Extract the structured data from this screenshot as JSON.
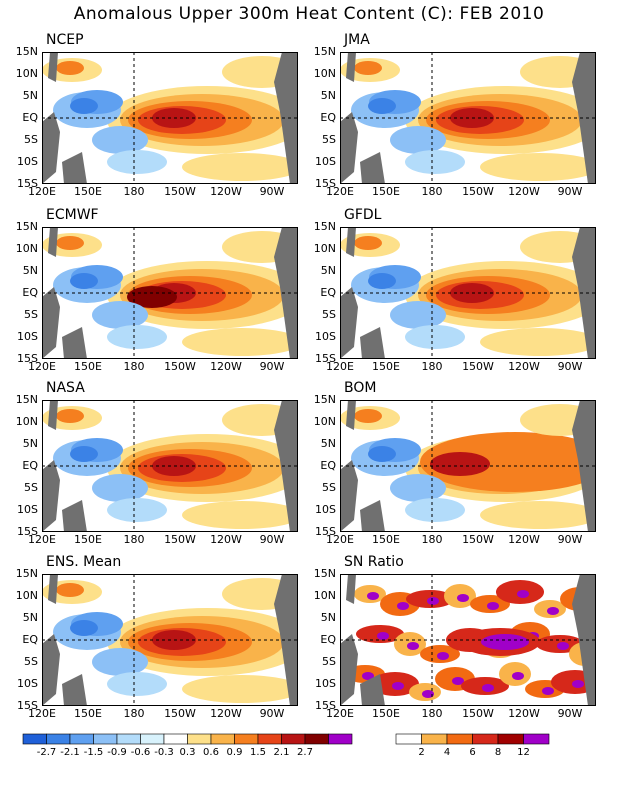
{
  "title": "Anomalous Upper 300m Heat Content (C): FEB 2010",
  "panels": [
    {
      "id": "ncep",
      "label": "NCEP"
    },
    {
      "id": "jma",
      "label": "JMA"
    },
    {
      "id": "ecmwf",
      "label": "ECMWF"
    },
    {
      "id": "gfdl",
      "label": "GFDL"
    },
    {
      "id": "nasa",
      "label": "NASA"
    },
    {
      "id": "bom",
      "label": "BOM"
    },
    {
      "id": "ens",
      "label": "ENS. Mean"
    },
    {
      "id": "sn",
      "label": "SN Ratio"
    }
  ],
  "lat_labels": [
    "15N",
    "10N",
    "5N",
    "EQ",
    "5S",
    "10S",
    "15S"
  ],
  "lon_labels": [
    "120E",
    "150E",
    "180",
    "150W",
    "120W",
    "90W"
  ],
  "anomaly_colorbar": {
    "labels": [
      "-2.7",
      "-2.1",
      "-1.5",
      "-0.9",
      "-0.6",
      "-0.3",
      "0.3",
      "0.6",
      "0.9",
      "1.5",
      "2.1",
      "2.7"
    ],
    "colors": [
      "#1f60d8",
      "#3b82e6",
      "#5fa0f0",
      "#8cc0f6",
      "#b3dcfa",
      "#d8f2fc",
      "#ffffff",
      "#fde08a",
      "#f9b34a",
      "#f57f1f",
      "#e64418",
      "#b81414",
      "#800000",
      "#a000c8"
    ]
  },
  "sn_colorbar": {
    "labels": [
      "2",
      "4",
      "6",
      "8",
      "12"
    ],
    "colors": [
      "#ffffff",
      "#f9b34a",
      "#f26a12",
      "#d6281a",
      "#a00000",
      "#a000c8"
    ]
  }
}
